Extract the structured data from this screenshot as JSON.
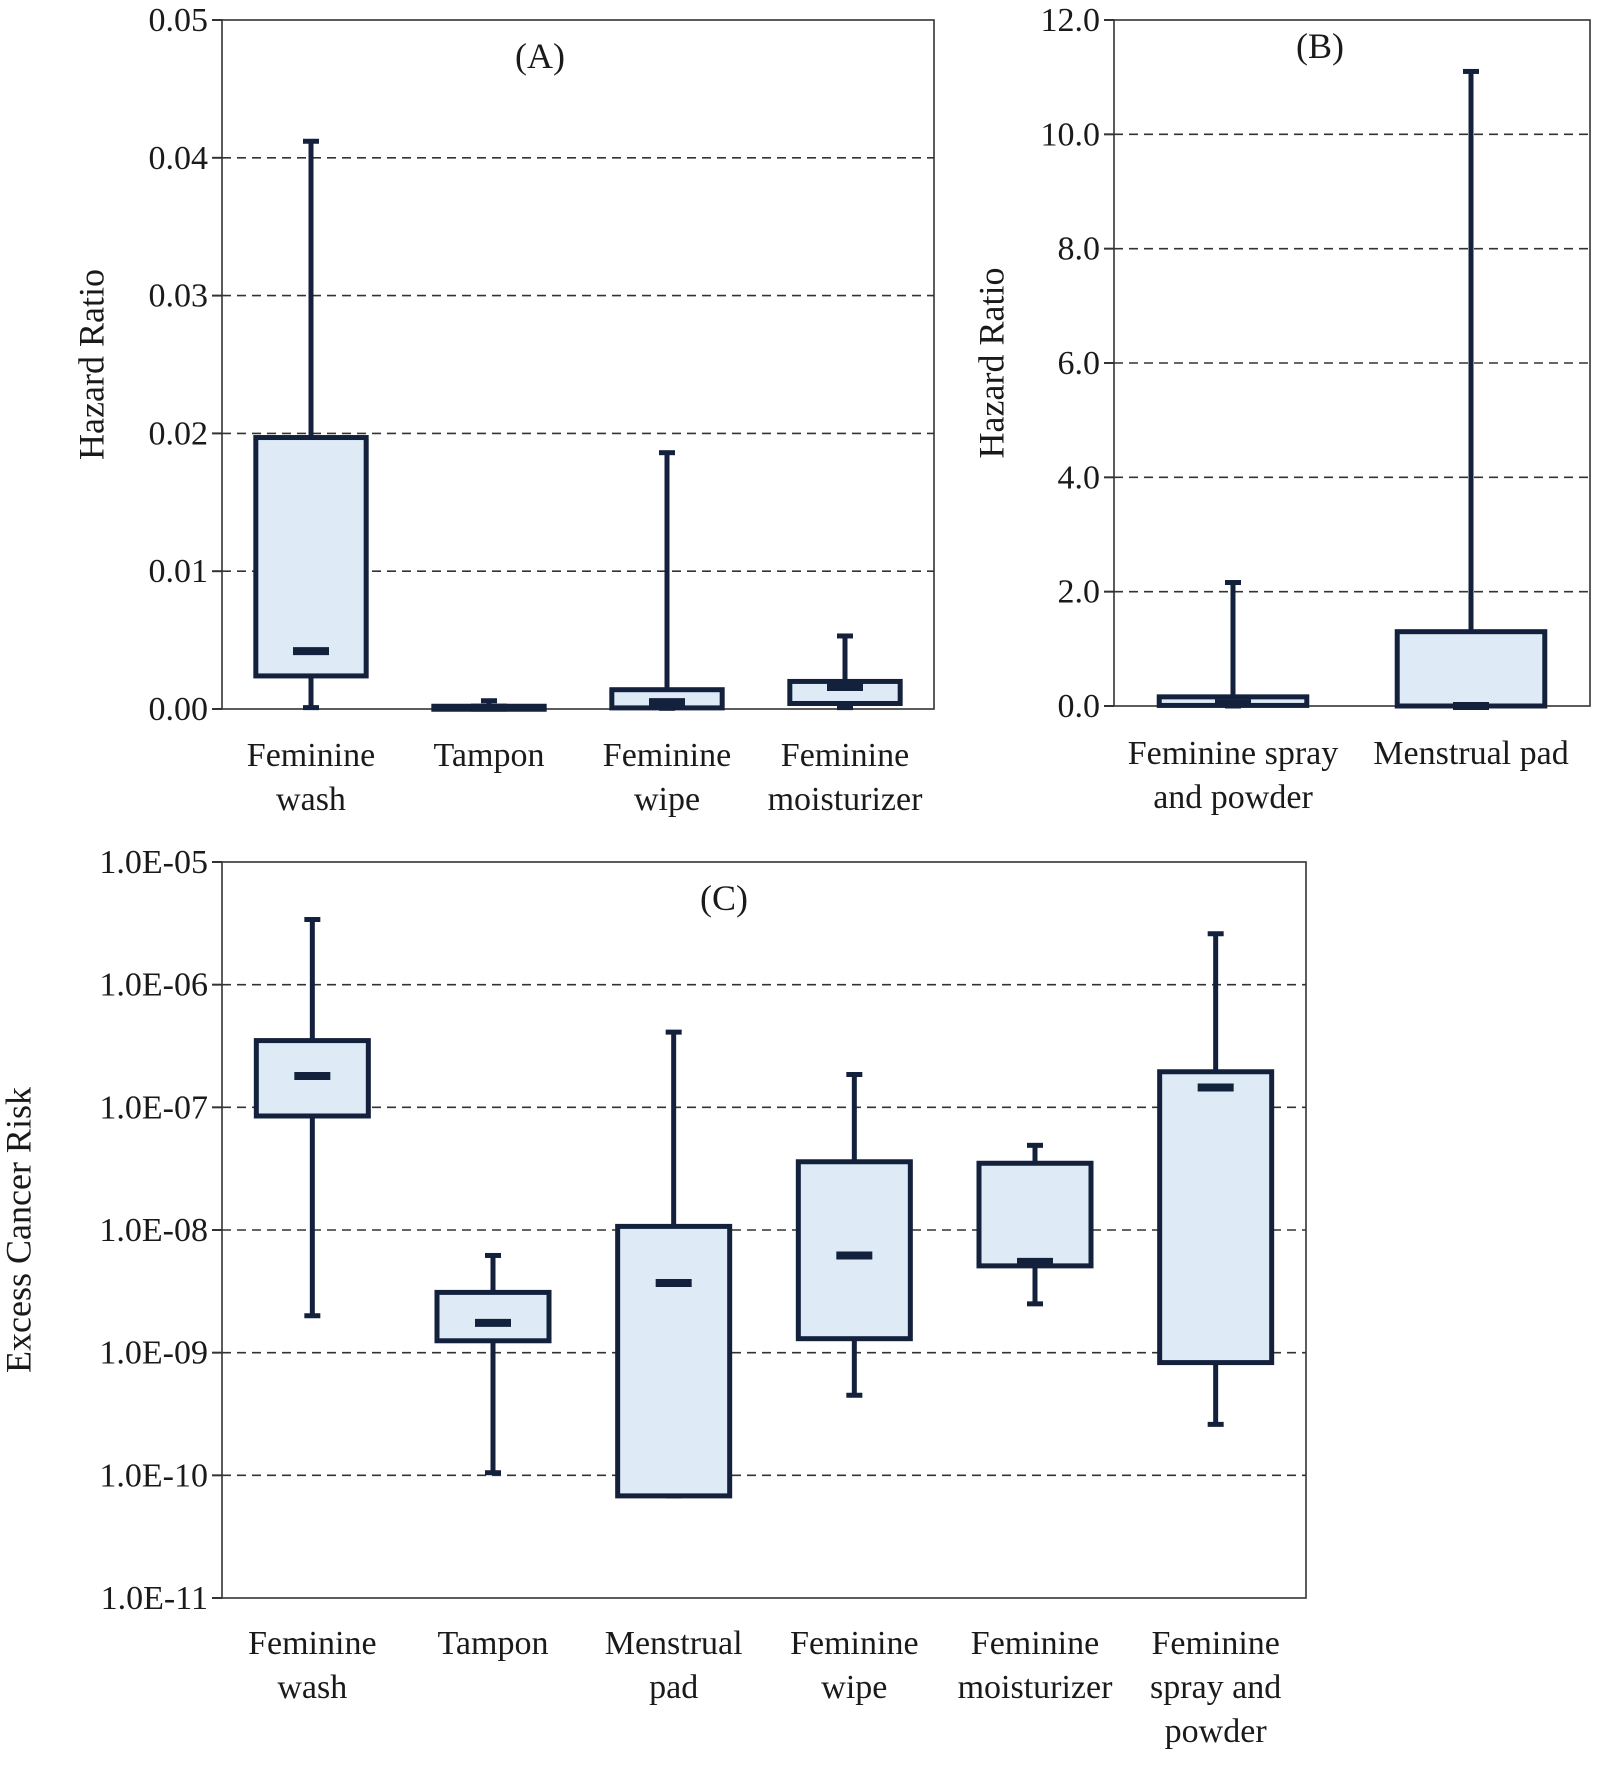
{
  "colors": {
    "box_fill": "#deebf7",
    "stroke": "#14213d",
    "grid": "#333333",
    "axis": "#333333"
  },
  "chart_data": [
    {
      "panel": "A",
      "panel_label": "(A)",
      "type": "boxplot",
      "ylabel": "Hazard  Ratio",
      "scale": "linear",
      "ylim": [
        0,
        0.05
      ],
      "yticks": [
        0,
        0.01,
        0.02,
        0.03,
        0.04,
        0.05
      ],
      "ytick_labels": [
        "0.00",
        "0.01",
        "0.02",
        "0.03",
        "0.04",
        "0.05"
      ],
      "grid": true,
      "categories": [
        [
          "Feminine",
          "wash"
        ],
        [
          "Tampon"
        ],
        [
          "Feminine",
          "wipe"
        ],
        [
          "Feminine",
          "moisturizer"
        ]
      ],
      "boxes": [
        {
          "min": 0.0001,
          "q1": 0.0024,
          "median": 0.0042,
          "q3": 0.0197,
          "max": 0.0412
        },
        {
          "min": 0.0,
          "q1": 3e-05,
          "median": 0.0001,
          "q3": 0.0002,
          "max": 0.0006
        },
        {
          "min": 5e-05,
          "q1": 8e-05,
          "median": 0.0005,
          "q3": 0.0014,
          "max": 0.0186
        },
        {
          "min": 0.0001,
          "q1": 0.0004,
          "median": 0.0016,
          "q3": 0.002,
          "max": 0.0053
        }
      ]
    },
    {
      "panel": "B",
      "panel_label": "(B)",
      "type": "boxplot",
      "ylabel": "Hazard  Ratio",
      "scale": "linear",
      "ylim": [
        0,
        12
      ],
      "yticks": [
        0,
        2,
        4,
        6,
        8,
        10,
        12
      ],
      "ytick_labels": [
        "0.0",
        "2.0",
        "4.0",
        "6.0",
        "8.0",
        "10.0",
        "12.0"
      ],
      "grid": true,
      "categories": [
        [
          "Feminine spray",
          "and powder"
        ],
        [
          "Menstrual pad"
        ]
      ],
      "boxes": [
        {
          "min": 0.0,
          "q1": 0.01,
          "median": 0.05,
          "q3": 0.16,
          "max": 2.16
        },
        {
          "min": 0.0,
          "q1": 0.0,
          "median": 0.0,
          "q3": 1.3,
          "max": 11.1
        }
      ]
    },
    {
      "panel": "C",
      "panel_label": "(C)",
      "type": "boxplot",
      "ylabel": "Excess  Cancer  Risk",
      "scale": "log",
      "ylim": [
        1e-11,
        1e-05
      ],
      "yticks": [
        1e-11,
        1e-10,
        1e-09,
        1e-08,
        1e-07,
        1e-06,
        1e-05
      ],
      "ytick_labels": [
        "1.0E-11",
        "1.0E-10",
        "1.0E-09",
        "1.0E-08",
        "1.0E-07",
        "1.0E-06",
        "1.0E-05"
      ],
      "grid": true,
      "categories": [
        [
          "Feminine",
          "wash"
        ],
        [
          "Tampon"
        ],
        [
          "Menstrual",
          "pad"
        ],
        [
          "Feminine",
          "wipe"
        ],
        [
          "Feminine",
          "moisturizer"
        ],
        [
          "Feminine",
          "spray and",
          "powder"
        ]
      ],
      "boxes": [
        {
          "min": 2e-09,
          "q1": 8.5e-08,
          "median": 1.8e-07,
          "q3": 3.5e-07,
          "max": 3.4e-06
        },
        {
          "min": 1.05e-10,
          "q1": 1.25e-09,
          "median": 1.75e-09,
          "q3": 3.1e-09,
          "max": 6.2e-09
        },
        {
          "min": 6.8e-11,
          "q1": 6.8e-11,
          "median": 3.7e-09,
          "q3": 1.07e-08,
          "max": 4.1e-07
        },
        {
          "min": 4.5e-10,
          "q1": 1.3e-09,
          "median": 6.2e-09,
          "q3": 3.6e-08,
          "max": 1.85e-07
        },
        {
          "min": 2.5e-09,
          "q1": 5.1e-09,
          "median": 5.5e-09,
          "q3": 3.5e-08,
          "max": 4.9e-08
        },
        {
          "min": 2.6e-10,
          "q1": 8.3e-10,
          "median": 1.45e-07,
          "q3": 1.95e-07,
          "max": 2.6e-06
        }
      ]
    }
  ]
}
